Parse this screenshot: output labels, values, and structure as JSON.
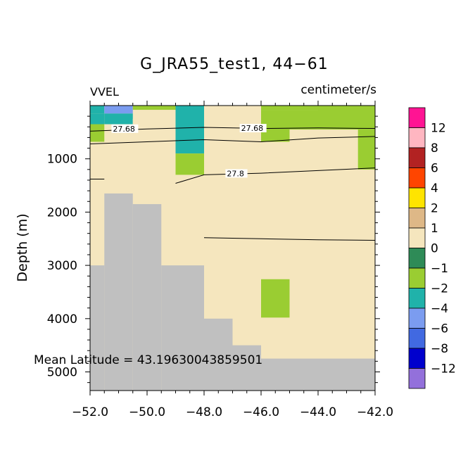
{
  "chart_data": {
    "type": "heatmap",
    "title": "G_JRA55_test1, 44−61",
    "left_label": "VVEL",
    "units": "centimeter/s",
    "ylabel": "Depth (m)",
    "xlabel": "",
    "annotation": "Mean Latitude = 43.19630043859501",
    "xlim": [
      -52.0,
      -42.0
    ],
    "ylim": [
      5350,
      0
    ],
    "x_ticks": [
      "−52.0",
      "−50.0",
      "−48.0",
      "−46.0",
      "−44.0",
      "−42.0"
    ],
    "x_tick_values": [
      -52,
      -50,
      -48,
      -46,
      -44,
      -42
    ],
    "y_ticks": [
      "1000",
      "2000",
      "3000",
      "4000",
      "5000"
    ],
    "y_tick_values": [
      1000,
      2000,
      3000,
      4000,
      5000
    ],
    "background_class": "0 to 1",
    "land_color": "#c0c0c0",
    "colorbar": {
      "colors": [
        "#ff1493",
        "#ffb6c1",
        "#b22222",
        "#ff4500",
        "#ffe400",
        "#deb887",
        "#f5e6be",
        "#2e8b57",
        "#9acd32",
        "#20b2aa",
        "#7b9cf0",
        "#4169e1",
        "#0000cd",
        "#9370db"
      ],
      "labels": [
        "12",
        "8",
        "6",
        "4",
        "2",
        "1",
        "0",
        "−1",
        "−2",
        "−4",
        "−6",
        "−8",
        "−12"
      ]
    },
    "cells": [
      {
        "x": [
          -52.0,
          -51.5
        ],
        "y": [
          0,
          150
        ],
        "class": "-2"
      },
      {
        "x": [
          -51.5,
          -50.5
        ],
        "y": [
          0,
          150
        ],
        "class": "-4"
      },
      {
        "x": [
          -51.5,
          -50.5
        ],
        "y": [
          150,
          350
        ],
        "class": "-2"
      },
      {
        "x": [
          -52.0,
          -51.5
        ],
        "y": [
          150,
          350
        ],
        "class": "-2"
      },
      {
        "x": [
          -52.0,
          -51.5
        ],
        "y": [
          350,
          680
        ],
        "class": "-1"
      },
      {
        "x": [
          -50.5,
          -49.0
        ],
        "y": [
          0,
          80
        ],
        "class": "-1"
      },
      {
        "x": [
          -50.5,
          -49.5
        ],
        "y": [
          250,
          350
        ],
        "class": "1"
      },
      {
        "x": [
          -49.0,
          -48.0
        ],
        "y": [
          0,
          900
        ],
        "class": "-2"
      },
      {
        "x": [
          -49.0,
          -48.0
        ],
        "y": [
          900,
          1300
        ],
        "class": "-1"
      },
      {
        "x": [
          -48.0,
          -47.0
        ],
        "y": [
          0,
          300
        ],
        "class": "1"
      },
      {
        "x": [
          -46.0,
          -44.0
        ],
        "y": [
          0,
          80
        ],
        "class": "-1"
      },
      {
        "x": [
          -46.0,
          -45.0
        ],
        "y": [
          80,
          680
        ],
        "class": "-1"
      },
      {
        "x": [
          -45.0,
          -44.0
        ],
        "y": [
          80,
          450
        ],
        "class": "-1"
      },
      {
        "x": [
          -44.0,
          -42.0
        ],
        "y": [
          0,
          450
        ],
        "class": "-1"
      },
      {
        "x": [
          -42.6,
          -42.0
        ],
        "y": [
          450,
          1200
        ],
        "class": "-1"
      },
      {
        "x": [
          -46.0,
          -45.0
        ],
        "y": [
          3260,
          3980
        ],
        "class": "-1"
      }
    ],
    "land": [
      {
        "x": [
          -52.0,
          -51.5
        ],
        "y": [
          3000,
          5350
        ]
      },
      {
        "x": [
          -51.5,
          -50.5
        ],
        "y": [
          1650,
          5350
        ]
      },
      {
        "x": [
          -50.5,
          -49.5
        ],
        "y": [
          1850,
          5350
        ]
      },
      {
        "x": [
          -49.5,
          -48.0
        ],
        "y": [
          3000,
          5350
        ]
      },
      {
        "x": [
          -48.0,
          -47.0
        ],
        "y": [
          4000,
          5350
        ]
      },
      {
        "x": [
          -47.0,
          -46.0
        ],
        "y": [
          4500,
          5350
        ]
      },
      {
        "x": [
          -46.0,
          -42.0
        ],
        "y": [
          4750,
          5350
        ]
      }
    ],
    "contours": [
      {
        "label": "27.68",
        "label_x": -51.2,
        "label_y": 460,
        "points": [
          [
            -52.0,
            480
          ],
          [
            -50.0,
            440
          ],
          [
            -48.0,
            410
          ],
          [
            -46.0,
            430
          ],
          [
            -44.0,
            420
          ],
          [
            -42.0,
            430
          ]
        ]
      },
      {
        "label": "27.68",
        "label_x": -46.7,
        "label_y": 450,
        "points": []
      },
      {
        "label": "",
        "label_x": null,
        "label_y": null,
        "points": [
          [
            -52.0,
            720
          ],
          [
            -50.0,
            680
          ],
          [
            -48.0,
            640
          ],
          [
            -46.0,
            680
          ],
          [
            -44.0,
            610
          ],
          [
            -42.0,
            580
          ]
        ]
      },
      {
        "label": "27.8",
        "label_x": -47.2,
        "label_y": 1300,
        "points": [
          [
            -49.0,
            1460
          ],
          [
            -48.0,
            1300
          ],
          [
            -46.0,
            1270
          ],
          [
            -44.0,
            1220
          ],
          [
            -42.0,
            1170
          ]
        ]
      },
      {
        "label": "",
        "label_x": null,
        "label_y": null,
        "points": [
          [
            -52.0,
            1380
          ],
          [
            -51.5,
            1380
          ]
        ]
      },
      {
        "label": "",
        "label_x": null,
        "label_y": null,
        "points": [
          [
            -48.0,
            2480
          ],
          [
            -46.0,
            2500
          ],
          [
            -44.0,
            2520
          ],
          [
            -42.0,
            2530
          ]
        ]
      }
    ]
  }
}
